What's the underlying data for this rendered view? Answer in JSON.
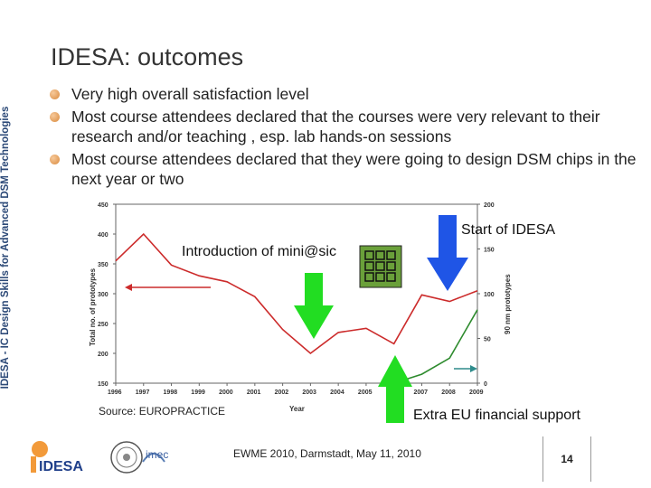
{
  "sidebar": {
    "text": "IDESA - IC Design Skills for Advanced DSM Technologies"
  },
  "slide": {
    "title": "IDESA: outcomes",
    "bullets": [
      "Very high overall satisfaction level",
      "Most course attendees declared that the courses were very relevant to their research and/or teaching , esp. lab hands-on sessions",
      "Most course attendees declared that they were going to design DSM chips in the next year or two"
    ]
  },
  "annotations": {
    "start": "Start of IDESA",
    "mini": "Introduction of mini@sic",
    "eu": "Extra EU financial support"
  },
  "colors": {
    "arrow_green": "#22dd22",
    "arrow_blue": "#1f55e6",
    "series_total": "#cc2b2b",
    "series_90nm": "#2e8b2e",
    "chip_bg": "#6aa03a"
  },
  "icons": [
    "arrow-down-green-icon",
    "arrow-up-green-icon",
    "arrow-down-blue-icon",
    "chip-grid-icon",
    "arrow-left-red-icon",
    "arrow-right-teal-icon"
  ],
  "source": "Source: EUROPRACTICE",
  "footer": {
    "event": "EWME 2010, Darmstadt, May 11, 2010",
    "page": "14"
  },
  "logos": {
    "idesa": "IDESA",
    "imec": "imec"
  },
  "chart_data": {
    "type": "line",
    "x": [
      1996,
      1997,
      1998,
      1999,
      2000,
      2001,
      2002,
      2003,
      2004,
      2005,
      2006,
      2007,
      2008,
      2009
    ],
    "xlabel": "Year",
    "ylabel_left": "Total no. of prototypes",
    "ylabel_right": "90 nm prototypes",
    "ylim_left": [
      150,
      450
    ],
    "ylim_right": [
      0,
      200
    ],
    "left_ticks": [
      150,
      200,
      250,
      300,
      350,
      400,
      450
    ],
    "right_ticks": [
      0,
      50,
      100,
      150,
      200
    ],
    "grid": false,
    "series": [
      {
        "axis": "left",
        "x": [
          1996,
          1997,
          1998,
          1999,
          2000,
          2001,
          2002,
          2003,
          2004,
          2005,
          2006,
          2007,
          2008,
          2009
        ],
        "values": [
          355,
          400,
          348,
          330,
          320,
          295,
          240,
          200,
          235,
          242,
          216,
          298,
          287,
          305
        ]
      },
      {
        "axis": "right",
        "x": [
          2006,
          2007,
          2008,
          2009
        ],
        "values": [
          0,
          10,
          28,
          82
        ]
      }
    ]
  }
}
